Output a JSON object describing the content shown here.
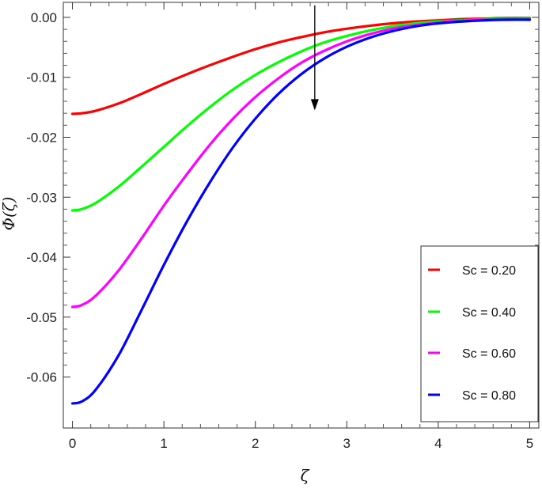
{
  "chart_data": {
    "type": "line",
    "title": "",
    "xlabel": "ζ",
    "ylabel": "Φ(ζ)",
    "xlim": [
      -0.1,
      5.1
    ],
    "ylim": [
      -0.0685,
      0.0025
    ],
    "x_ticks": [
      0,
      1,
      2,
      3,
      4,
      5
    ],
    "x_tick_labels": [
      "0",
      "1",
      "2",
      "3",
      "4",
      "5"
    ],
    "y_ticks": [
      0.0,
      -0.01,
      -0.02,
      -0.03,
      -0.04,
      -0.05,
      -0.06
    ],
    "y_tick_labels": [
      "0.00",
      "-0.01",
      "-0.02",
      "-0.03",
      "-0.04",
      "-0.05",
      "-0.06"
    ],
    "grid": false,
    "legend_position": "bottom-right",
    "annotation": {
      "type": "arrow",
      "direction": "down",
      "meaning": "increasing Sc",
      "x": 2.65,
      "y_start": 0.002,
      "y_end": -0.0155
    },
    "x": [
      0,
      0.1,
      0.25,
      0.5,
      0.75,
      1.0,
      1.25,
      1.5,
      1.75,
      2.0,
      2.25,
      2.5,
      2.75,
      3.0,
      3.25,
      3.5,
      3.75,
      4.0,
      4.25,
      4.5,
      4.75,
      5.0
    ],
    "series": [
      {
        "name": "Sc = 0.20",
        "color": "#ff0000",
        "values": [
          -0.0161,
          -0.016,
          -0.0156,
          -0.0144,
          -0.0128,
          -0.0111,
          -0.0095,
          -0.008,
          -0.0066,
          -0.0053,
          -0.0042,
          -0.0033,
          -0.0025,
          -0.0019,
          -0.0014,
          -0.001,
          -0.0007,
          -0.0005,
          -0.0003,
          -0.0002,
          -0.0001,
          -0.0001
        ]
      },
      {
        "name": "Sc = 0.40",
        "color": "#00ff00",
        "values": [
          -0.0322,
          -0.032,
          -0.031,
          -0.0283,
          -0.025,
          -0.0216,
          -0.0182,
          -0.015,
          -0.0121,
          -0.0096,
          -0.0075,
          -0.0057,
          -0.0042,
          -0.0031,
          -0.0022,
          -0.0015,
          -0.001,
          -0.0007,
          -0.0005,
          -0.0003,
          -0.0002,
          -0.0002
        ]
      },
      {
        "name": "Sc = 0.60",
        "color": "#ff00ff",
        "values": [
          -0.0483,
          -0.048,
          -0.0465,
          -0.0423,
          -0.037,
          -0.0314,
          -0.0262,
          -0.0213,
          -0.017,
          -0.0133,
          -0.0102,
          -0.0076,
          -0.0056,
          -0.004,
          -0.0028,
          -0.0019,
          -0.0013,
          -0.0009,
          -0.0006,
          -0.0004,
          -0.0003,
          -0.0003
        ]
      },
      {
        "name": "Sc = 0.80",
        "color": "#0000ff",
        "values": [
          -0.0644,
          -0.0641,
          -0.0622,
          -0.0565,
          -0.049,
          -0.0413,
          -0.0341,
          -0.0276,
          -0.0218,
          -0.0169,
          -0.0128,
          -0.0095,
          -0.0069,
          -0.0049,
          -0.0034,
          -0.0023,
          -0.0015,
          -0.001,
          -0.0007,
          -0.0005,
          -0.0004,
          -0.0004
        ]
      }
    ]
  }
}
